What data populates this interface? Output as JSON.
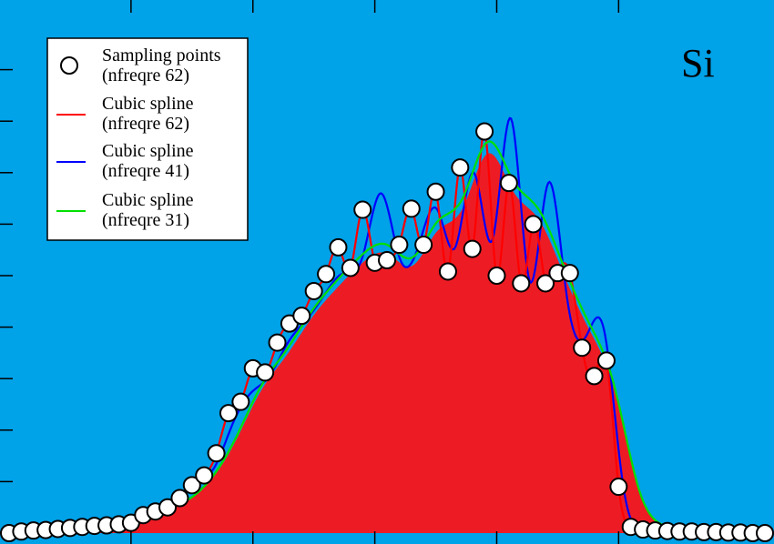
{
  "chart_data": {
    "type": "line",
    "title": "",
    "xlabel": "",
    "ylabel": "",
    "annotation": "Si",
    "background_color": "#00a2e8",
    "fill_color": "#ed1c24",
    "grid": false,
    "legend_placement": "top-left",
    "xlim": [
      0,
      62
    ],
    "ylim": [
      0,
      10
    ],
    "sampling_points": {
      "name": "Sampling points",
      "subname": "(nfreqre 62)",
      "x": [
        0,
        1,
        2,
        3,
        4,
        5,
        6,
        7,
        8,
        9,
        10,
        11,
        12,
        13,
        14,
        15,
        16,
        17,
        18,
        19,
        20,
        21,
        22,
        23,
        24,
        25,
        26,
        27,
        28,
        29,
        30,
        31,
        32,
        33,
        34,
        35,
        36,
        37,
        38,
        39,
        40,
        41,
        42,
        43,
        44,
        45,
        46,
        47,
        48,
        49,
        50,
        51,
        52,
        53,
        54,
        55,
        56,
        57,
        58,
        59,
        60,
        61,
        62
      ],
      "y": [
        0,
        0.03,
        0.05,
        0.06,
        0.08,
        0.1,
        0.12,
        0.14,
        0.15,
        0.17,
        0.2,
        0.35,
        0.42,
        0.5,
        0.68,
        0.93,
        1.12,
        1.55,
        2.33,
        2.55,
        3.2,
        3.12,
        3.7,
        4.07,
        4.22,
        4.7,
        5.03,
        5.55,
        5.15,
        6.28,
        5.25,
        5.3,
        5.6,
        6.3,
        5.6,
        6.63,
        5.08,
        7.1,
        5.52,
        7.8,
        5.0,
        6.8,
        4.85,
        6.0,
        4.85,
        5.05,
        5.05,
        3.6,
        3.05,
        3.35,
        0.9,
        0.12,
        0.07,
        0.05,
        0.04,
        0.03,
        0.03,
        0.02,
        0.02,
        0.01,
        0.01,
        0.0,
        0.0
      ]
    },
    "series": [
      {
        "name": "Cubic spline",
        "subname": "(nfreqre 62)",
        "color": "#ff0000",
        "x": [
          0,
          1,
          2,
          3,
          4,
          5,
          6,
          7,
          8,
          9,
          10,
          11,
          12,
          13,
          14,
          15,
          16,
          17,
          18,
          19,
          20,
          21,
          22,
          23,
          24,
          25,
          26,
          27,
          28,
          29,
          30,
          31,
          32,
          33,
          34,
          35,
          36,
          37,
          38,
          39,
          40,
          41,
          42,
          43,
          44,
          45,
          46,
          47,
          48,
          49,
          50,
          51,
          52,
          53,
          54,
          55,
          56,
          57,
          58,
          59,
          60,
          61,
          62
        ],
        "y": [
          0,
          0.03,
          0.05,
          0.06,
          0.08,
          0.1,
          0.12,
          0.14,
          0.15,
          0.17,
          0.2,
          0.35,
          0.42,
          0.5,
          0.68,
          0.93,
          1.12,
          1.55,
          2.33,
          2.55,
          3.2,
          3.12,
          3.7,
          4.07,
          4.22,
          4.7,
          5.03,
          5.55,
          5.15,
          6.28,
          5.25,
          5.3,
          5.6,
          6.3,
          5.6,
          6.63,
          5.08,
          7.1,
          5.52,
          7.8,
          5.0,
          6.8,
          4.85,
          6.0,
          4.85,
          5.05,
          5.05,
          3.6,
          3.05,
          3.35,
          0.9,
          0.12,
          0.07,
          0.05,
          0.04,
          0.03,
          0.03,
          0.02,
          0.02,
          0.01,
          0.01,
          0.0,
          0.0
        ]
      },
      {
        "name": "Cubic spline",
        "subname": "(nfreqre 41)",
        "color": "#0000ff",
        "x": [
          0,
          1.525,
          3.05,
          4.575,
          6.1,
          7.625,
          9.15,
          10.675,
          12.2,
          13.725,
          15.25,
          16.775,
          18.3,
          19.825,
          21.35,
          22.875,
          24.4,
          25.925,
          27.45,
          28.975,
          30.5,
          32.025,
          33.55,
          35.075,
          36.6,
          38.125,
          39.65,
          41.175,
          42.7,
          44.225,
          45.75,
          47.275,
          48.8,
          50.325,
          51.85,
          53.375,
          54.9,
          56.425,
          57.95,
          59.475,
          61
        ],
        "y": [
          0,
          0.04,
          0.07,
          0.1,
          0.12,
          0.15,
          0.18,
          0.38,
          0.45,
          0.62,
          0.98,
          1.25,
          2.1,
          2.72,
          3.05,
          3.7,
          4.15,
          4.65,
          5.05,
          5.35,
          6.6,
          5.35,
          5.55,
          6.3,
          5.55,
          7.0,
          5.7,
          8.05,
          4.9,
          6.8,
          4.6,
          3.8,
          3.95,
          1.0,
          0.05,
          0.06,
          0.04,
          0.03,
          0.02,
          0.01,
          0.0
        ]
      },
      {
        "name": "Cubic spline",
        "subname": "(nfreqre 31)",
        "color": "#00e000",
        "x": [
          0,
          2.067,
          4.133,
          6.2,
          8.267,
          10.333,
          12.4,
          14.467,
          16.533,
          18.6,
          20.667,
          22.733,
          24.8,
          26.867,
          28.933,
          31,
          33.067,
          35.133,
          37.2,
          39.267,
          41.333,
          43.4,
          45.467,
          47.533,
          49.6,
          51.667,
          53.733,
          55.8,
          57.867,
          59.933,
          62
        ],
        "y": [
          0,
          0.05,
          0.08,
          0.12,
          0.15,
          0.2,
          0.42,
          0.62,
          1.05,
          1.85,
          2.85,
          3.55,
          4.3,
          4.9,
          5.4,
          5.6,
          5.35,
          6.05,
          6.5,
          7.6,
          6.85,
          6.3,
          5.2,
          4.1,
          2.9,
          0.85,
          0.15,
          0.08,
          0.05,
          0.03,
          0.02
        ]
      }
    ]
  }
}
